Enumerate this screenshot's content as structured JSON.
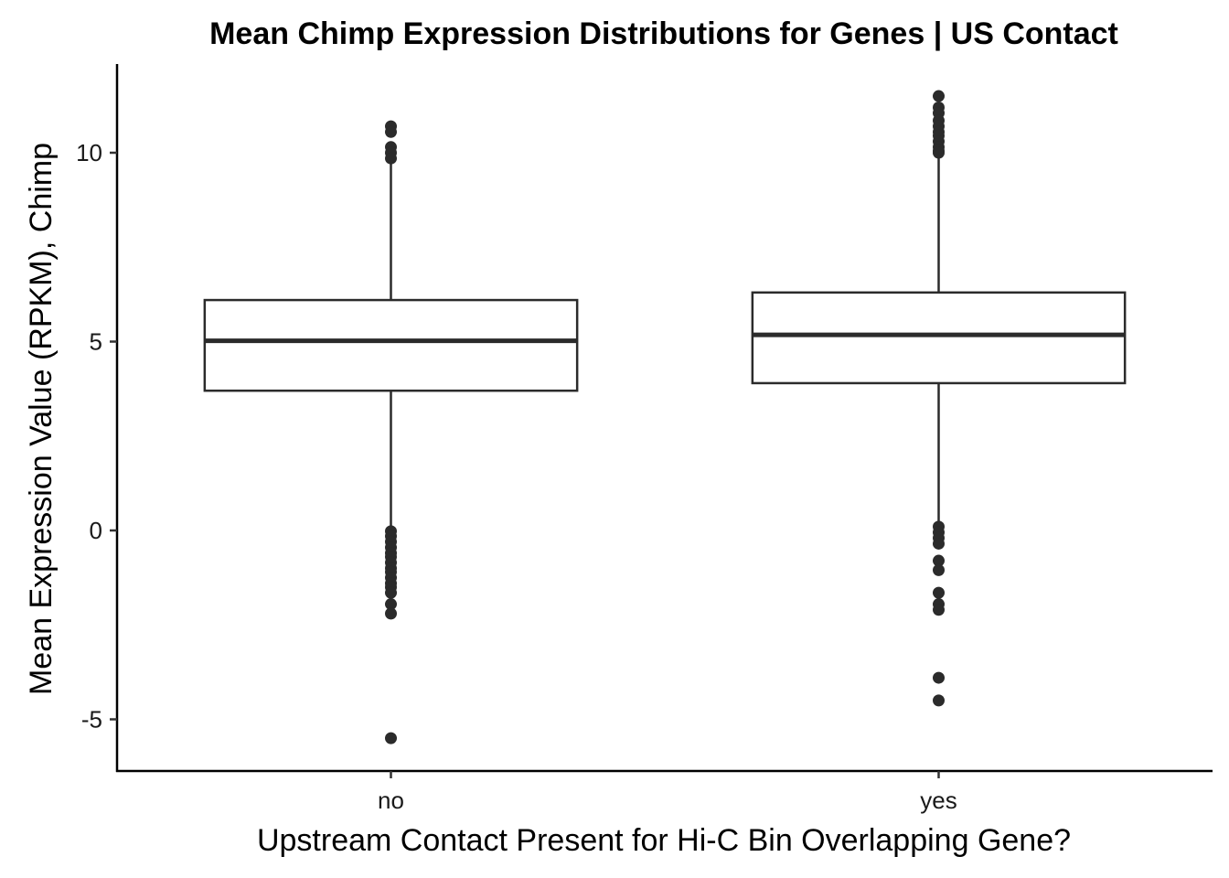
{
  "chart_data": {
    "type": "box",
    "title": "Mean Chimp Expression Distributions for Genes | US Contact",
    "xlabel": "Upstream Contact Present for Hi-C Bin Overlapping Gene?",
    "ylabel": "Mean Expression Value (RPKM), Chimp",
    "categories": [
      "no",
      "yes"
    ],
    "ylim": [
      -6.4,
      12.8
    ],
    "yticks": [
      -5,
      0,
      5,
      10
    ],
    "ytick_labels": [
      "-5",
      "0",
      "5",
      "10"
    ],
    "grid": false,
    "boxes": [
      {
        "category": "no",
        "q1": 3.7,
        "median": 5.02,
        "q3": 6.1,
        "whisker_low": 0.0,
        "whisker_high": 9.75,
        "outliers": [
          10.7,
          10.55,
          10.15,
          10.0,
          9.85,
          -0.02,
          -0.15,
          -0.3,
          -0.45,
          -0.6,
          -0.7,
          -0.85,
          -1.0,
          -1.1,
          -1.25,
          -1.4,
          -1.5,
          -1.65,
          -1.95,
          -2.2,
          -5.5
        ]
      },
      {
        "category": "yes",
        "q1": 3.9,
        "median": 5.18,
        "q3": 6.3,
        "whisker_low": 0.2,
        "whisker_high": 9.95,
        "outliers": [
          11.5,
          11.2,
          11.05,
          10.85,
          10.7,
          10.55,
          10.45,
          10.3,
          10.15,
          10.05,
          10.0,
          0.1,
          -0.05,
          -0.2,
          -0.35,
          -0.8,
          -1.05,
          -1.65,
          -1.95,
          -2.1,
          -3.9,
          -4.5
        ]
      }
    ]
  }
}
